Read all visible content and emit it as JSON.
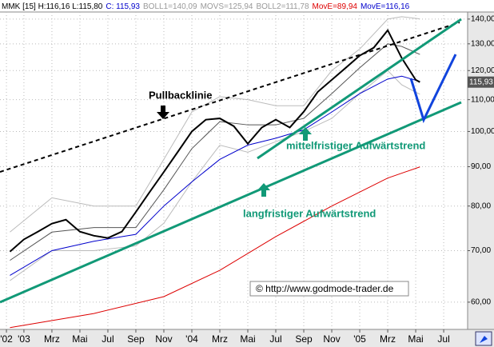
{
  "chart_data": {
    "type": "line",
    "header": [
      {
        "text": "MMK [15] H:116,16 L:115,80",
        "color": "#000000"
      },
      {
        "text": "C: 115,93",
        "color": "#0000cc"
      },
      {
        "text": "BOLL1=140,09",
        "color": "#999999"
      },
      {
        "text": "MOVS=125,94",
        "color": "#999999"
      },
      {
        "text": "BOLL2=111,78",
        "color": "#999999"
      },
      {
        "text": "MovE=89,94",
        "color": "#dd0000"
      },
      {
        "text": "MovE=116,16",
        "color": "#0000cc"
      }
    ],
    "last_price": {
      "value": 115.93,
      "label": "115,93"
    },
    "annotations": [
      "Pullbacklinie",
      "mittelfristiger Aufwärtstrend",
      "langfristiger Aufwärtstrend",
      "© http://www.godmode-trader.de"
    ],
    "log_scale": true,
    "grid": true,
    "xlim": [
      -1.71,
      31.71
    ],
    "ylim": [
      55.3,
      143
    ],
    "xticks": [
      {
        "value": -1.25,
        "label": "'02"
      },
      {
        "value": 0,
        "label": "'03"
      },
      {
        "value": 2,
        "label": "Mrz"
      },
      {
        "value": 4,
        "label": "Mai"
      },
      {
        "value": 6,
        "label": "Jul"
      },
      {
        "value": 8,
        "label": "Sep"
      },
      {
        "value": 10,
        "label": "Nov"
      },
      {
        "value": 12,
        "label": "'04"
      },
      {
        "value": 14,
        "label": "Mrz"
      },
      {
        "value": 16,
        "label": "Mai"
      },
      {
        "value": 18,
        "label": "Jul"
      },
      {
        "value": 20,
        "label": "Sep"
      },
      {
        "value": 22,
        "label": "Nov"
      },
      {
        "value": 24,
        "label": "'05"
      },
      {
        "value": 26,
        "label": "Mrz"
      },
      {
        "value": 28,
        "label": "Mai"
      },
      {
        "value": 30,
        "label": "Jul"
      }
    ],
    "yticks": [
      {
        "value": 60,
        "label": "60,00"
      },
      {
        "value": 70,
        "label": "70,00"
      },
      {
        "value": 80,
        "label": "80,00"
      },
      {
        "value": 90,
        "label": "90,00"
      },
      {
        "value": 100,
        "label": "100,00"
      },
      {
        "value": 110,
        "label": "110,00"
      },
      {
        "value": 120,
        "label": "120,00"
      },
      {
        "value": 130,
        "label": "130,00"
      },
      {
        "value": 140,
        "label": "140,00"
      }
    ],
    "series": [
      {
        "color": "#bbbbbb",
        "width": 1,
        "x": [
          -1,
          2,
          5,
          8,
          10,
          12,
          14,
          16,
          18,
          20,
          22,
          24,
          26,
          27,
          28.3
        ],
        "values": [
          74,
          82,
          80,
          80,
          92,
          106,
          111,
          110,
          108,
          108,
          120,
          128,
          140,
          141,
          140.09
        ]
      },
      {
        "color": "#bbbbbb",
        "width": 1,
        "x": [
          -1,
          2,
          5,
          8,
          10,
          12,
          14,
          16,
          18,
          20,
          22,
          24,
          26,
          27,
          28.3
        ],
        "values": [
          64,
          70,
          70,
          71,
          76,
          86,
          96,
          94,
          97,
          100,
          104,
          112,
          120,
          115,
          111.78
        ]
      },
      {
        "color": "#555555",
        "width": 1,
        "x": [
          -1,
          2,
          5,
          8,
          10,
          12,
          14,
          16,
          18,
          20,
          22,
          24,
          26,
          27,
          28.3
        ],
        "values": [
          68,
          74,
          75,
          75,
          84,
          95,
          103,
          102,
          102,
          104,
          112,
          121,
          130,
          129,
          125.94
        ]
      },
      {
        "color": "#dd0000",
        "width": 1,
        "x": [
          -1,
          5,
          10,
          14,
          18,
          22,
          26,
          28.3
        ],
        "values": [
          55.6,
          58,
          61,
          66,
          73,
          80,
          87,
          89.94
        ]
      },
      {
        "color": "#0000cc",
        "width": 1,
        "x": [
          -1,
          2,
          5,
          8,
          10,
          12,
          14,
          16,
          18,
          20,
          22,
          24,
          26,
          27,
          28.3
        ],
        "values": [
          65,
          70,
          72,
          73.5,
          80,
          86,
          92,
          96,
          98,
          100.5,
          106,
          112,
          117,
          118,
          116.16
        ]
      },
      {
        "color": "#000000",
        "width": 2,
        "x": [
          -1,
          0,
          1,
          2,
          3,
          4,
          5,
          6,
          7,
          8,
          9,
          10,
          11,
          12,
          13,
          14,
          15,
          16,
          17,
          18,
          19,
          20,
          21,
          22,
          23,
          24,
          25,
          26,
          27,
          28,
          28.3
        ],
        "values": [
          69.8,
          72.4,
          74.1,
          75.9,
          76.8,
          74.1,
          73.2,
          72.7,
          74.1,
          78.6,
          83.5,
          88.6,
          94.1,
          100,
          103.6,
          104,
          101.6,
          96.4,
          101.2,
          103.6,
          101.2,
          106.1,
          112.6,
          116.7,
          121,
          125.5,
          128.5,
          135.4,
          124.6,
          116.7,
          115.93
        ]
      }
    ]
  }
}
